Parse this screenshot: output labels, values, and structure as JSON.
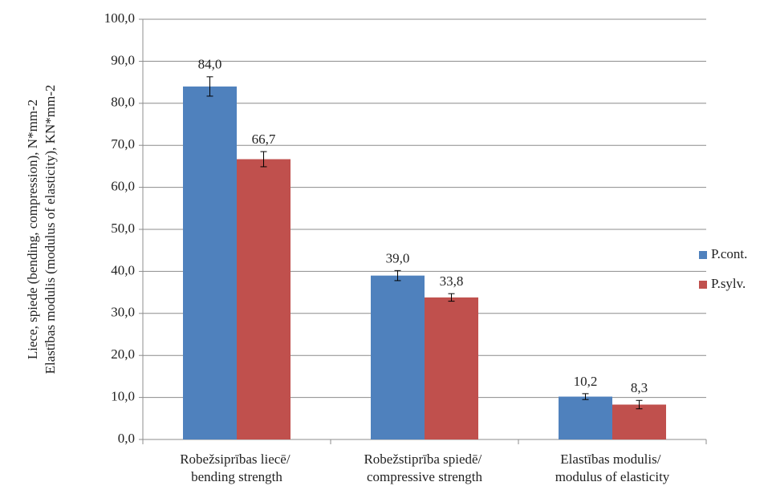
{
  "chart_data": {
    "type": "bar",
    "y_label": [
      "Liece, spiede (bending, compression), N*mm-2",
      "Elastības modulis (modulus of elasticity), KN*mm-2"
    ],
    "categories": [
      "Robežsiprības liecē/ bending strength",
      "Robežstiprība spiedē/ compressive strength",
      "Elastības modulis/ modulus of elasticity"
    ],
    "series": [
      {
        "name": "P.cont.",
        "color": "#4f81bd",
        "values": [
          84,
          39,
          10.2
        ],
        "value_labels": [
          "84,0",
          "39,0",
          "10,2"
        ],
        "errors": [
          2.3,
          1.2,
          0.7
        ]
      },
      {
        "name": "P.sylv.",
        "color": "#c0504d",
        "values": [
          66.7,
          33.8,
          8.3
        ],
        "value_labels": [
          "66,7",
          "33,8",
          "8,3"
        ],
        "errors": [
          1.8,
          0.9,
          1.0
        ]
      }
    ],
    "ylim": [
      0,
      100
    ],
    "yticks": [
      {
        "value": 0,
        "label": "0,0"
      },
      {
        "value": 10,
        "label": "10,0"
      },
      {
        "value": 20,
        "label": "20,0"
      },
      {
        "value": 30,
        "label": "30,0"
      },
      {
        "value": 40,
        "label": "40,0"
      },
      {
        "value": 50,
        "label": "50,0"
      },
      {
        "value": 60,
        "label": "60,0"
      },
      {
        "value": 70,
        "label": "70,0"
      },
      {
        "value": 80,
        "label": "80,0"
      },
      {
        "value": 90,
        "label": "90,0"
      },
      {
        "value": 100,
        "label": "100,0"
      }
    ],
    "grid": true,
    "legend": "right"
  }
}
